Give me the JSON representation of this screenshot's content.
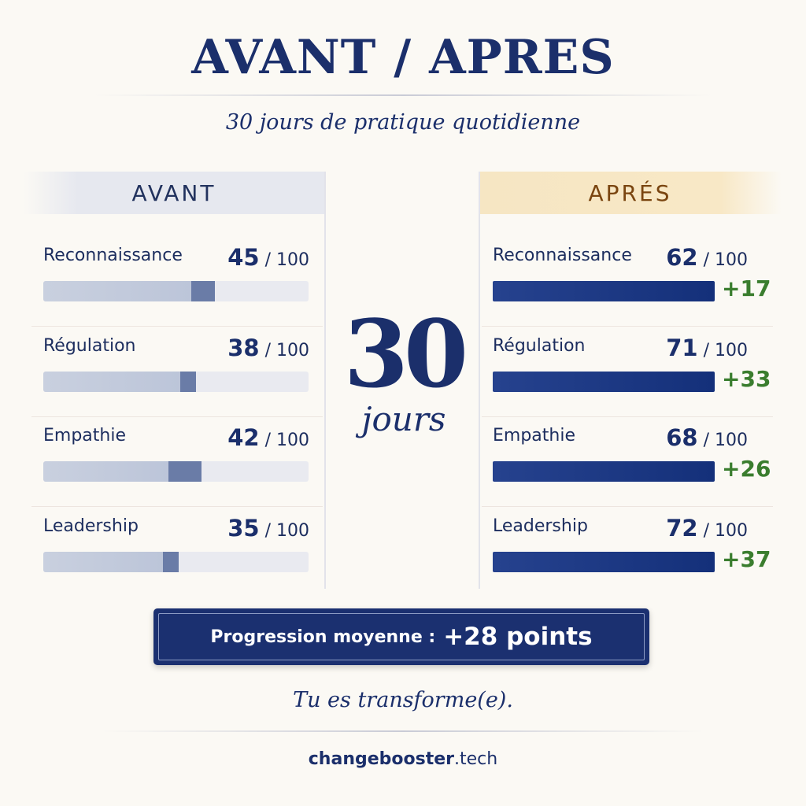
{
  "title": "AVANT / APRES",
  "subtitle": "30 jours de pratique quotidienne",
  "center": {
    "number": "30",
    "unit": "jours"
  },
  "summary": {
    "label": "Progression moyenne :",
    "value": "+28 points"
  },
  "tagline": "Tu es transforme(e).",
  "footer": {
    "brand": "changebooster",
    "tld": ".tech"
  },
  "colors": {
    "primary": "#1b2f6b",
    "gain": "#3a7d2e",
    "apres_header": "#f6e6c3",
    "avant_header": "#e6e8ef"
  },
  "chart_data": {
    "type": "bar",
    "categories": [
      "Reconnaissance",
      "Régulation",
      "Empathie",
      "Leadership"
    ],
    "max": 100,
    "max_label": "/ 100",
    "series": [
      {
        "name": "AVANT",
        "values": [
          45,
          38,
          42,
          35
        ],
        "labels": [
          "45",
          "38",
          "42",
          "35"
        ]
      },
      {
        "name": "APRÉS",
        "values": [
          62,
          71,
          68,
          72
        ],
        "labels": [
          "62",
          "71",
          "68",
          "72"
        ]
      }
    ],
    "deltas": [
      "+17",
      "+33",
      "+26",
      "+37"
    ]
  }
}
